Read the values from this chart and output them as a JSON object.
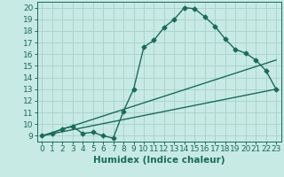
{
  "xlabel": "Humidex (Indice chaleur)",
  "bg_color": "#c8eae4",
  "plot_bg_color": "#c8eae4",
  "line_color": "#1a6b5a",
  "grid_color": "#aad4cc",
  "xlim": [
    -0.5,
    23.5
  ],
  "ylim": [
    8.5,
    20.5
  ],
  "xticks": [
    0,
    1,
    2,
    3,
    4,
    5,
    6,
    7,
    8,
    9,
    10,
    11,
    12,
    13,
    14,
    15,
    16,
    17,
    18,
    19,
    20,
    21,
    22,
    23
  ],
  "yticks": [
    9,
    10,
    11,
    12,
    13,
    14,
    15,
    16,
    17,
    18,
    19,
    20
  ],
  "line1_x": [
    0,
    1,
    2,
    3,
    4,
    5,
    6,
    7,
    8,
    9,
    10,
    11,
    12,
    13,
    14,
    15,
    16,
    17,
    18,
    19,
    20,
    21,
    22,
    23
  ],
  "line1_y": [
    9.0,
    9.2,
    9.6,
    9.8,
    9.2,
    9.3,
    9.0,
    8.8,
    11.1,
    13.0,
    16.6,
    17.2,
    18.3,
    19.0,
    20.0,
    19.9,
    19.2,
    18.4,
    17.3,
    16.4,
    16.1,
    15.5,
    14.6,
    13.0
  ],
  "line2_x": [
    0,
    23
  ],
  "line2_y": [
    9.0,
    13.0
  ],
  "line3_x": [
    0,
    23
  ],
  "line3_y": [
    9.0,
    15.5
  ],
  "marker": "D",
  "markersize": 2.5,
  "linewidth": 1.0,
  "tick_fontsize": 6.5,
  "xlabel_fontsize": 7.5
}
